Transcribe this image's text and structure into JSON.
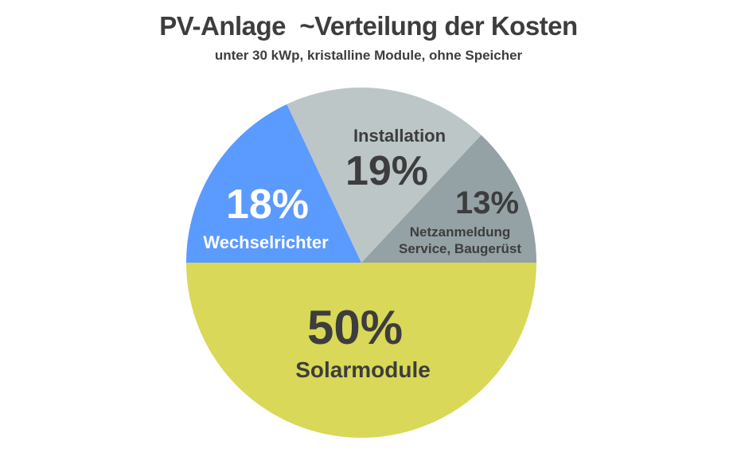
{
  "chart_data": {
    "type": "pie",
    "title": "PV-Anlage  ~Verteilung der Kosten",
    "subtitle": "unter 30 kWp, kristalline Module, ohne Speicher",
    "start": "3 o'clock, counter-clockwise",
    "slices": [
      {
        "label": "Netzanmeldung Service, Baugerüst",
        "label_lines": [
          "Netzanmeldung",
          "Service, Baugerüst"
        ],
        "value": 13,
        "display": "13%",
        "color": "#94a2a5",
        "text_color": "#3d3d3d"
      },
      {
        "label": "Installation",
        "label_lines": [
          "Installation"
        ],
        "value": 19,
        "display": "19%",
        "color": "#bcc6c7",
        "text_color": "#3d3d3d"
      },
      {
        "label": "Wechselrichter",
        "label_lines": [
          "Wechselrichter"
        ],
        "value": 18,
        "display": "18%",
        "color": "#5b9aff",
        "text_color": "#ffffff"
      },
      {
        "label": "Solarmodule",
        "label_lines": [
          "Solarmodule"
        ],
        "value": 50,
        "display": "50%",
        "color": "#d9d858",
        "text_color": "#3d3d3d"
      }
    ]
  }
}
